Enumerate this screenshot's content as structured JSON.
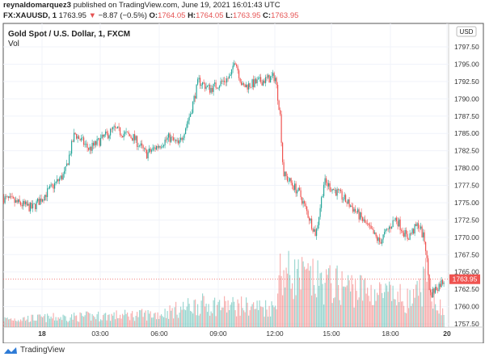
{
  "header": {
    "publisher": "reynaldomarquez3",
    "published_text": "published on TradingView.com, June 19, 2021 16:01:43 UTC",
    "symbol": "FX:XAUUSD, 1",
    "last": "1763.95",
    "change": "−8.87 (−0.5%)",
    "o_label": "O:",
    "o": "1764.05",
    "h_label": "H:",
    "h": "1764.05",
    "l_label": "L:",
    "l": "1763.95",
    "c_label": "C:",
    "c": "1763.95"
  },
  "footer": {
    "brand": "TradingView"
  },
  "colors": {
    "up": "#26a69a",
    "down": "#ef5350",
    "price_line": "#ef5350"
  },
  "chart_data": {
    "type": "candlestick",
    "title": "Gold Spot / U.S. Dollar, 1, FXCM",
    "indicator": "Vol",
    "currency": "USD",
    "y_ticks": [
      "1797.50",
      "1795.00",
      "1792.50",
      "1790.00",
      "1787.50",
      "1785.00",
      "1782.50",
      "1780.00",
      "1777.50",
      "1775.00",
      "1772.50",
      "1770.00",
      "1767.50",
      "1765.00",
      "1762.50",
      "1760.00",
      "1757.50"
    ],
    "ylim": [
      1757.5,
      1797.5
    ],
    "x_ticks": [
      "18",
      "03:00",
      "06:00",
      "09:00",
      "12:00",
      "15:00",
      "18:00",
      "20"
    ],
    "last_price": "1763.95",
    "grid": true,
    "price_path": [
      [
        "06-17 22:00",
        1775.7
      ],
      [
        "06-17 23:30",
        1774.2
      ],
      [
        "06-18 01:10",
        1779.2
      ],
      [
        "06-18 01:40",
        1785.0
      ],
      [
        "06-18 02:25",
        1782.7
      ],
      [
        "06-18 03:40",
        1785.6
      ],
      [
        "06-18 04:40",
        1784.4
      ],
      [
        "06-18 05:20",
        1782.0
      ],
      [
        "06-18 06:30",
        1784.4
      ],
      [
        "06-18 07:00",
        1783.3
      ],
      [
        "06-18 07:35",
        1787.9
      ],
      [
        "06-18 08:00",
        1792.6
      ],
      [
        "06-18 08:35",
        1791.4
      ],
      [
        "06-18 09:40",
        1793.2
      ],
      [
        "06-18 09:50",
        1796.0
      ],
      [
        "06-18 10:15",
        1791.7
      ],
      [
        "06-18 11:55",
        1793.2
      ],
      [
        "06-18 12:10",
        1787.9
      ],
      [
        "06-18 12:20",
        1779.2
      ],
      [
        "06-18 13:10",
        1776.3
      ],
      [
        "06-18 14:00",
        1770.4
      ],
      [
        "06-18 14:25",
        1778.0
      ],
      [
        "06-18 15:10",
        1776.3
      ],
      [
        "06-18 16:00",
        1773.9
      ],
      [
        "06-18 17:15",
        1769.3
      ],
      [
        "06-18 18:05",
        1772.8
      ],
      [
        "06-18 18:40",
        1769.9
      ],
      [
        "06-18 19:15",
        1771.9
      ],
      [
        "06-18 19:35",
        1769.3
      ],
      [
        "06-18 19:50",
        1761.7
      ],
      [
        "06-18 20:35",
        1764.0
      ]
    ],
    "volume_profile": [
      [
        "06-17 22:00",
        0.12
      ],
      [
        "06-18 06:00",
        0.2
      ],
      [
        "06-18 08:00",
        0.35
      ],
      [
        "06-18 11:55",
        0.3
      ],
      [
        "06-18 12:05",
        0.85
      ],
      [
        "06-18 14:00",
        0.7
      ],
      [
        "06-18 16:00",
        0.6
      ],
      [
        "06-18 19:00",
        0.4
      ],
      [
        "06-18 19:40",
        0.75
      ],
      [
        "06-18 20:35",
        0.15
      ]
    ]
  }
}
